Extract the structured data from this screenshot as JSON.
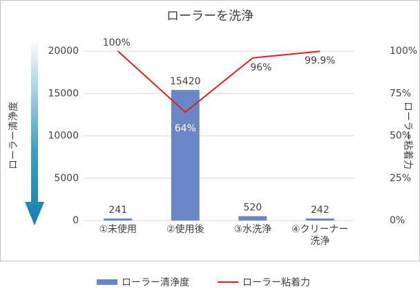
{
  "chart_data": {
    "type": "bar-line",
    "title": "ローラーを洗浄",
    "categories": [
      "①未使用",
      "②使用後",
      "③水洗浄",
      "④クリーナー\n洗浄"
    ],
    "series": [
      {
        "name": "ローラー清浄度",
        "type": "bar",
        "color": "#6a86c6",
        "values": [
          241,
          15420,
          520,
          242
        ]
      },
      {
        "name": "ローラー粘着力",
        "type": "line",
        "axis": "y2",
        "color": "#e0201c",
        "values": [
          100,
          64,
          96,
          99.9
        ],
        "value_labels": [
          "100%",
          "64%",
          "96%",
          "99.9%"
        ]
      }
    ],
    "ylabel": "ローラー清浄度",
    "y2label": "ローラー粘着力",
    "ylim": [
      0,
      20000
    ],
    "yticks": [
      0,
      5000,
      10000,
      15000,
      20000
    ],
    "y2lim": [
      0,
      100
    ],
    "y2ticks": [
      {
        "value": 0,
        "label": "0%"
      },
      {
        "value": 25,
        "label": "25%"
      },
      {
        "value": 50,
        "label": "50%"
      },
      {
        "value": 75,
        "label": "75%"
      },
      {
        "value": 100,
        "label": "100%"
      }
    ],
    "grid": true,
    "legend": "bottom"
  }
}
